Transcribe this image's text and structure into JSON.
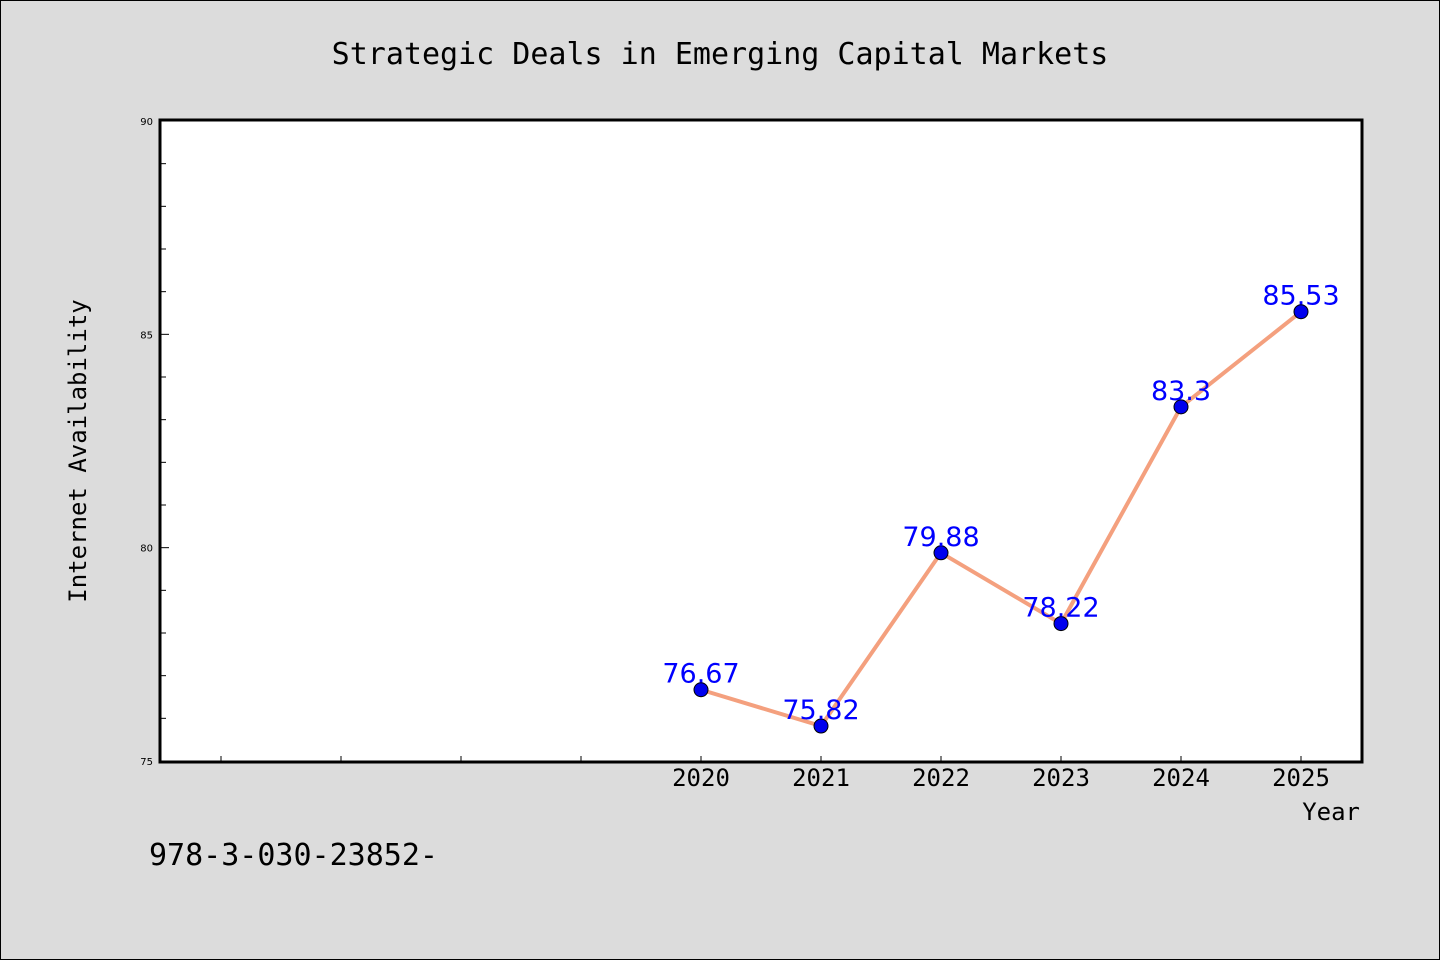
{
  "chart_data": {
    "type": "line",
    "title": "Strategic Deals in Emerging Capital Markets",
    "xlabel": "Year",
    "ylabel": "Internet Availability",
    "x": [
      "2020",
      "2021",
      "2022",
      "2023",
      "2024",
      "2025"
    ],
    "series": [
      {
        "values": [
          76.67,
          75.82,
          79.88,
          78.22,
          83.3,
          85.53
        ]
      }
    ],
    "data_labels": [
      "76.67",
      "75.82",
      "79.88",
      "78.22",
      "83.3",
      "85.53"
    ],
    "ylim": [
      75,
      90
    ],
    "y_ticks": [
      "75",
      "80",
      "85",
      "90"
    ],
    "grid": false,
    "legend": "none",
    "colors": {
      "line": "#f4a07e",
      "marker": "#0000ee",
      "label": "#0000ff",
      "background": "#dcdcdc",
      "plot_background": "#ffffff"
    }
  },
  "footnote": "978-3-030-23852-"
}
